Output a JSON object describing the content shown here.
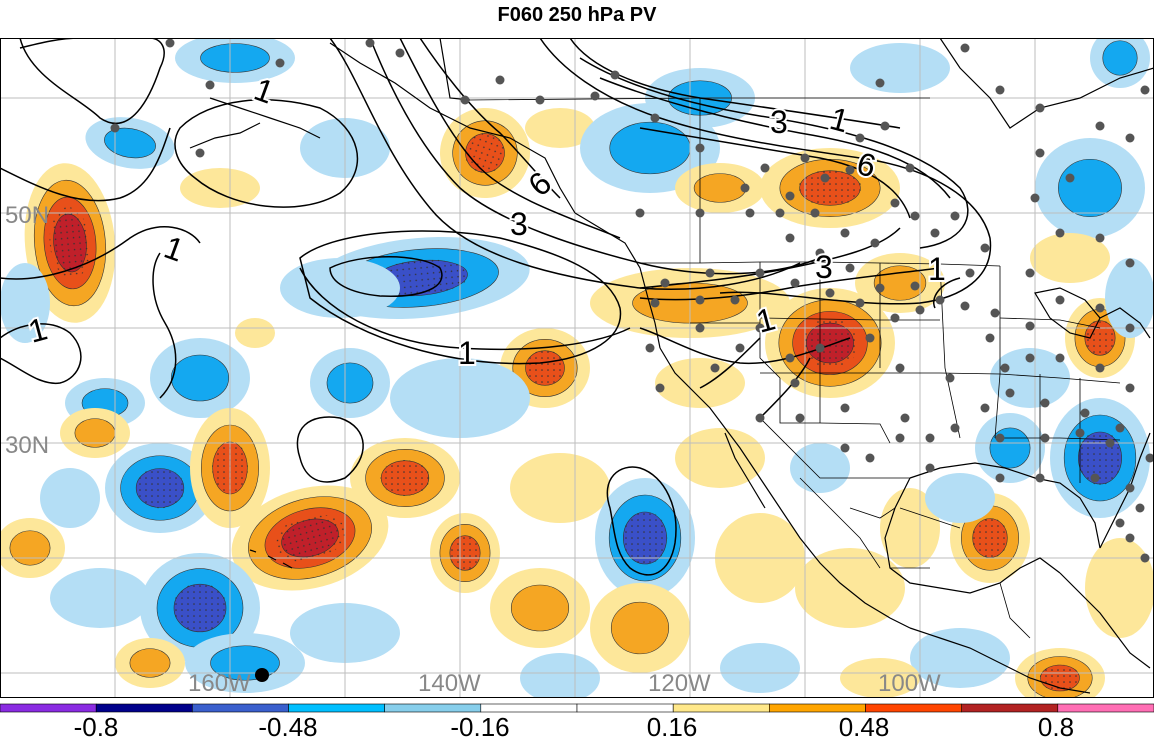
{
  "title": "F060 250 hPa PV",
  "map": {
    "lat_labels": [
      "50N",
      "30N"
    ],
    "lon_labels": [
      "160W",
      "140W",
      "120W",
      "100W"
    ],
    "contour_labels": [
      "1",
      "1",
      "1",
      "1",
      "1",
      "1",
      "1",
      "3",
      "3",
      "3",
      "6",
      "6"
    ]
  },
  "colorbar": {
    "colors": [
      "#8a2be2",
      "#00008b",
      "#3a5fcd",
      "#00bfff",
      "#87ceeb",
      "#ffffff",
      "#ffffff",
      "#ffe88a",
      "#ffa500",
      "#ff4500",
      "#b22222",
      "#ff6eb4"
    ],
    "labels": [
      "-0.8",
      "-0.48",
      "-0.16",
      "0.16",
      "0.48",
      "0.8"
    ]
  },
  "colors": {
    "strong_negative": "#3a50c8",
    "negative": "#14a8f0",
    "weak_negative": "#b4def5",
    "weak_positive": "#fde79a",
    "positive": "#f5a623",
    "strong_positive": "#e8501a",
    "peak_positive": "#c0202a"
  }
}
